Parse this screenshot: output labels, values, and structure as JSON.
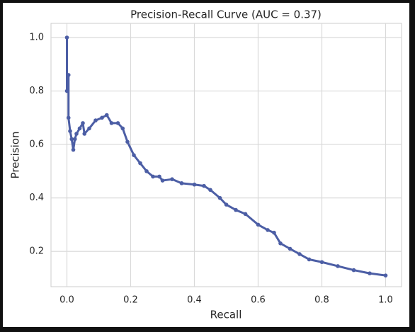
{
  "chart_data": {
    "type": "line",
    "title": "Precision-Recall Curve (AUC = 0.37)",
    "x_label": "Recall",
    "y_label": "Precision",
    "series": [
      {
        "name": "Precision-Recall",
        "color": "#4c5ea5",
        "x": [
          0,
          0,
          0.005,
          0.005,
          0.01,
          0.015,
          0.02,
          0.025,
          0.03,
          0.04,
          0.05,
          0.055,
          0.07,
          0.09,
          0.11,
          0.125,
          0.14,
          0.16,
          0.175,
          0.19,
          0.21,
          0.23,
          0.25,
          0.27,
          0.29,
          0.3,
          0.33,
          0.36,
          0.4,
          0.43,
          0.45,
          0.48,
          0.5,
          0.53,
          0.56,
          0.6,
          0.63,
          0.65,
          0.67,
          0.7,
          0.73,
          0.76,
          0.8,
          0.85,
          0.9,
          0.95,
          1.0
        ],
        "values": [
          1.0,
          0.8,
          0.86,
          0.7,
          0.65,
          0.62,
          0.58,
          0.62,
          0.64,
          0.66,
          0.68,
          0.64,
          0.66,
          0.69,
          0.7,
          0.71,
          0.68,
          0.68,
          0.66,
          0.61,
          0.56,
          0.53,
          0.5,
          0.48,
          0.48,
          0.465,
          0.47,
          0.455,
          0.45,
          0.445,
          0.43,
          0.4,
          0.375,
          0.355,
          0.34,
          0.3,
          0.28,
          0.27,
          0.23,
          0.21,
          0.19,
          0.17,
          0.16,
          0.145,
          0.13,
          0.118,
          0.11
        ]
      }
    ],
    "xlim": [
      -0.05,
      1.05
    ],
    "ylim": [
      0.068,
      1.053
    ],
    "xticks": [
      {
        "value": 0,
        "label": "0.0"
      },
      0.2,
      0.4,
      0.6,
      0.8,
      {
        "value": 1,
        "label": "1.0"
      }
    ],
    "yticks": [
      0.2,
      0.4,
      0.6,
      0.8,
      {
        "value": 1,
        "label": "1.0"
      }
    ],
    "grid": true
  }
}
